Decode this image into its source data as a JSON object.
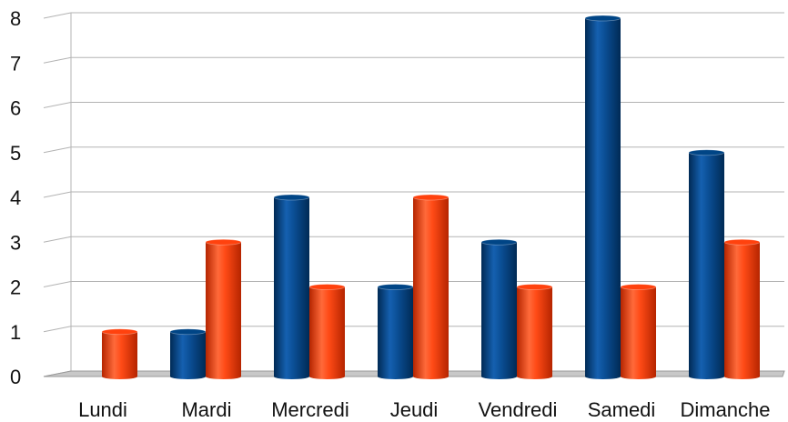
{
  "chart_data": {
    "type": "bar",
    "categories": [
      "Lundi",
      "Mardi",
      "Mercredi",
      "Jeudi",
      "Vendredi",
      "Samedi",
      "Dimanche"
    ],
    "series": [
      {
        "values": [
          0,
          1,
          4,
          2,
          3,
          8,
          5
        ],
        "color": "#004586"
      },
      {
        "values": [
          1,
          3,
          2,
          4,
          2,
          2,
          3
        ],
        "color": "#ff420e"
      }
    ],
    "ylim": [
      0,
      8
    ],
    "yticks": [
      "0",
      "1",
      "2",
      "3",
      "4",
      "5",
      "6",
      "7",
      "8"
    ],
    "grid": true,
    "legend": "none",
    "style": "3d-cylinder"
  }
}
